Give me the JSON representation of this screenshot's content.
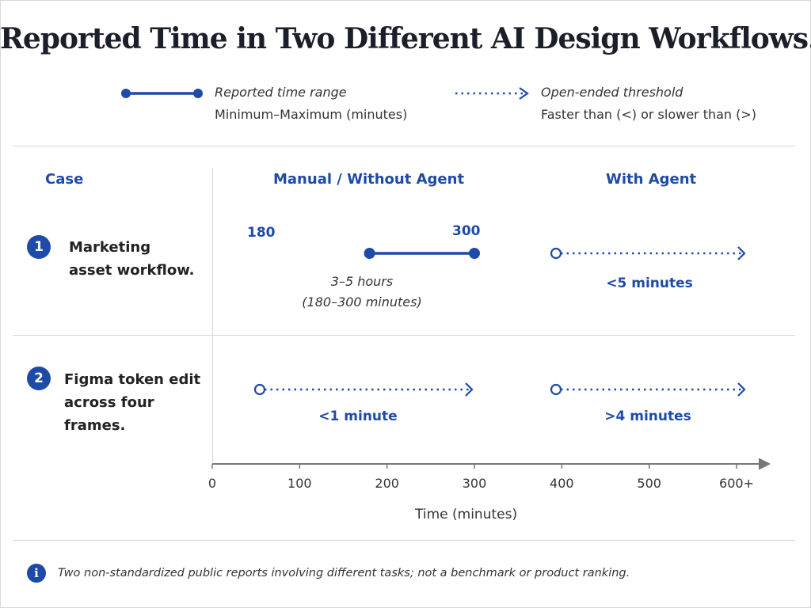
{
  "title": "Reported Time in Two Different AI Design Workflows.",
  "legend": {
    "range": {
      "label": "Reported time range",
      "desc": "Minimum–Maximum (minutes)"
    },
    "threshold": {
      "label": "Open-ended threshold",
      "desc": "Faster than (<) or slower than (>)"
    }
  },
  "columns": {
    "case": "Case",
    "manual": "Manual / Without Agent",
    "agent": "With Agent"
  },
  "cases": [
    {
      "num": "1",
      "name": "Marketing asset workflow."
    },
    {
      "num": "2",
      "name": "Figma token edit across four frames."
    }
  ],
  "chart_data": {
    "type": "range-threshold",
    "xlabel": "Time (minutes)",
    "ticks": [
      "0",
      "100",
      "200",
      "300",
      "400",
      "500",
      "600+"
    ],
    "rows": [
      {
        "case": "Marketing asset workflow.",
        "manual": {
          "kind": "range",
          "min": 180,
          "max": 300,
          "min_label": "180",
          "max_label": "300",
          "note_line1": "3–5 hours",
          "note_line2": "(180–300 minutes)"
        },
        "agent": {
          "kind": "threshold",
          "direction": "<",
          "value": 5,
          "label": "<5 minutes"
        }
      },
      {
        "case": "Figma token edit across four frames.",
        "manual": {
          "kind": "threshold",
          "direction": "<",
          "value": 1,
          "label": "<1 minute"
        },
        "agent": {
          "kind": "threshold",
          "direction": ">",
          "value": 4,
          "label": ">4 minutes"
        }
      }
    ],
    "colors": {
      "accent": "#1e4aa8",
      "axis": "#777777",
      "grid": "#d6d6d6"
    }
  },
  "footnote": "Two non-standardized public reports involving different tasks; not a benchmark or product ranking.",
  "icons": {
    "info": "info-icon"
  }
}
